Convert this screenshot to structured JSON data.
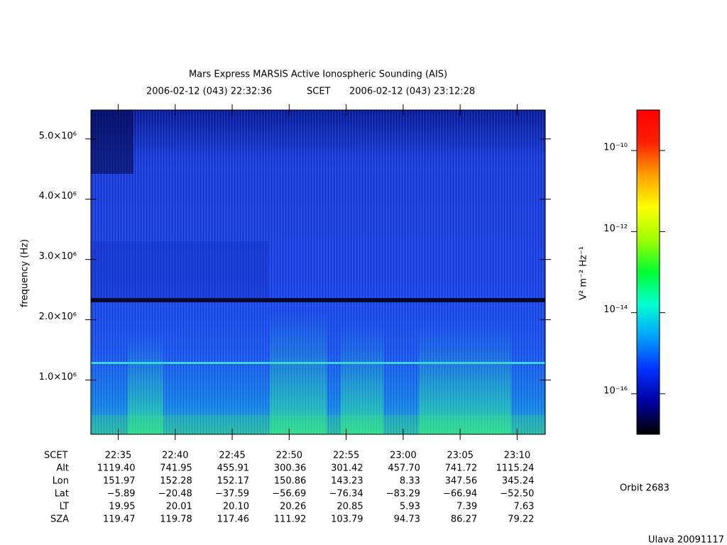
{
  "chart_data": {
    "type": "spectrogram",
    "title": "Mars Express MARSIS Active Ionospheric Sounding (AIS)",
    "start_time": "2006-02-12 (043) 22:32:36",
    "time_system": "SCET",
    "end_time": "2006-02-12 (043) 23:12:28",
    "y_label": "frequency (Hz)",
    "ylim": [
      100000,
      5480000
    ],
    "yticks": [
      {
        "value": 1000000,
        "label": "1.0×10⁶"
      },
      {
        "value": 2000000,
        "label": "2.0×10⁶"
      },
      {
        "value": 3000000,
        "label": "3.0×10⁶"
      },
      {
        "value": 4000000,
        "label": "4.0×10⁶"
      },
      {
        "value": 5000000,
        "label": "5.0×10⁶"
      }
    ],
    "colorbar": {
      "label": "V² m⁻² Hz⁻¹",
      "lim": [
        1e-17,
        1e-09
      ],
      "log_scale": true,
      "ticks": [
        {
          "value": 1e-16,
          "label": "10⁻¹⁶"
        },
        {
          "value": 1e-14,
          "label": "10⁻¹⁴"
        },
        {
          "value": 1e-12,
          "label": "10⁻¹²"
        },
        {
          "value": 1e-10,
          "label": "10⁻¹⁰"
        }
      ],
      "colors": [
        "#000000",
        "#0000a0",
        "#0030ff",
        "#00a0ff",
        "#00ffd0",
        "#00ff30",
        "#a0ff00",
        "#ffff00",
        "#ffa000",
        "#ff2000",
        "#ff0000"
      ]
    }
  },
  "ephemeris": {
    "labels": [
      "SCET",
      "Alt",
      "Lon",
      "Lat",
      "LT",
      "SZA"
    ],
    "rows": [
      [
        "22:35",
        "22:40",
        "22:45",
        "22:50",
        "22:55",
        "23:00",
        "23:05",
        "23:10"
      ],
      [
        "1119.40",
        "741.95",
        "455.91",
        "300.36",
        "301.42",
        "457.70",
        "741.72",
        "1115.24"
      ],
      [
        "151.97",
        "152.28",
        "152.17",
        "150.86",
        "143.23",
        "8.33",
        "347.56",
        "345.24"
      ],
      [
        "−5.89",
        "−20.48",
        "−37.59",
        "−56.69",
        "−76.34",
        "−83.29",
        "−66.94",
        "−52.50"
      ],
      [
        "19.95",
        "20.01",
        "20.10",
        "20.26",
        "20.85",
        "5.93",
        "7.39",
        "7.63"
      ],
      [
        "119.47",
        "119.78",
        "117.46",
        "111.92",
        "103.79",
        "94.73",
        "86.27",
        "79.22"
      ]
    ]
  },
  "orbit": "Orbit 2683",
  "footer": "Ulava 20091117"
}
